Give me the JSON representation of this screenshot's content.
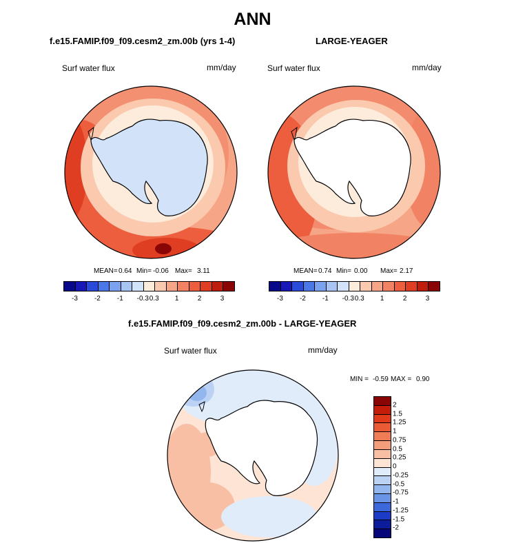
{
  "figure": {
    "title": "ANN",
    "left_panel": {
      "case": "f.e15.FAMIP.f09_f09.cesm2_zm.00b (yrs 1-4)",
      "variable": "Surf water flux",
      "units": "mm/day",
      "mean_label": "MEAN=",
      "mean": "0.64",
      "min_label": "Min=",
      "min": "-0.06",
      "max_label": "Max=",
      "max": "3.11"
    },
    "right_panel": {
      "case": "LARGE-YEAGER",
      "variable": "Surf water flux",
      "units": "mm/day",
      "mean_label": "MEAN=",
      "mean": "0.74",
      "min_label": "Min=",
      "min": "0.00",
      "max_label": "Max=",
      "max": "2.17"
    },
    "diff_panel": {
      "title": "f.e15.FAMIP.f09_f09.cesm2_zm.00b - LARGE-YEAGER",
      "variable": "Surf water flux",
      "units": "mm/day",
      "min_label": "MIN =",
      "min": "-0.59",
      "max_label": "MAX =",
      "max": "0.90"
    }
  },
  "colorbar_abs": {
    "ticks": [
      "-3",
      "-2",
      "-1",
      "-0.3",
      "0.3",
      "1",
      "2",
      "3"
    ],
    "colors": [
      "#08088a",
      "#1818b8",
      "#2a4ad8",
      "#4a78e6",
      "#7aa2ee",
      "#a8c4f2",
      "#d2e2f8",
      "#fdebdc",
      "#fac9ae",
      "#f6a686",
      "#f28264",
      "#ec5e3e",
      "#e03e22",
      "#c01e0c",
      "#8a0606"
    ]
  },
  "colorbar_diff": {
    "labels": [
      "2",
      "1.5",
      "1.25",
      "1",
      "0.75",
      "0.5",
      "0.25",
      "0",
      "-0.25",
      "-0.5",
      "-0.75",
      "-1",
      "-1.25",
      "-1.5",
      "-2"
    ],
    "colors": [
      "#8a0606",
      "#c41e0a",
      "#e03a1a",
      "#ea5a34",
      "#f07c56",
      "#f49e7c",
      "#f8bfa4",
      "#fde4d4",
      "#e0ecfa",
      "#bcd2f4",
      "#94b6ee",
      "#6a94e6",
      "#3c68dc",
      "#1c3cc8",
      "#0c1c9a",
      "#06067a"
    ]
  }
}
